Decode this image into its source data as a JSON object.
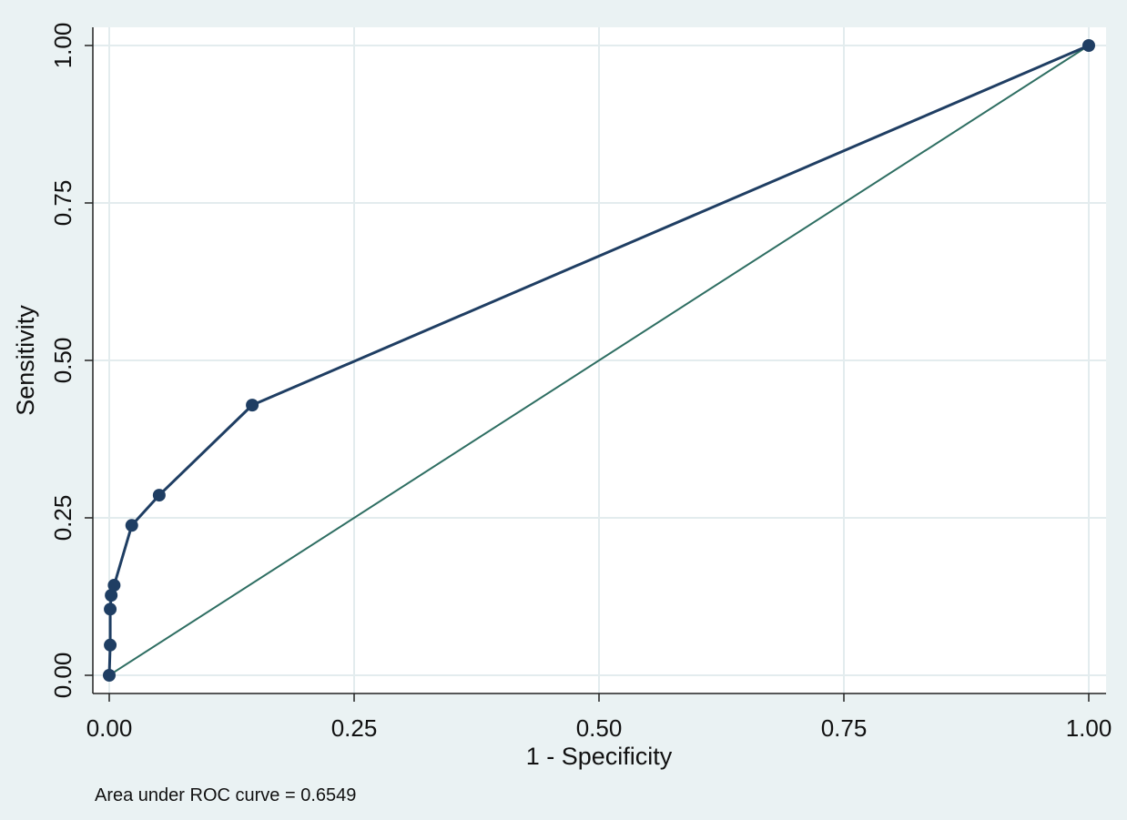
{
  "chart_data": {
    "type": "line",
    "title": "",
    "xlabel": "1 - Specificity",
    "ylabel": "Sensitivity",
    "xlim": [
      0,
      1
    ],
    "ylim": [
      0,
      1
    ],
    "x_ticks": [
      "0.00",
      "0.25",
      "0.50",
      "0.75",
      "1.00"
    ],
    "y_ticks": [
      "0.00",
      "0.25",
      "0.50",
      "0.75",
      "1.00"
    ],
    "grid": true,
    "note": "Area under ROC curve = 0.6549",
    "series": [
      {
        "color": "#1f3e63",
        "markers": true,
        "points": [
          {
            "x": 0.0,
            "y": 0.0
          },
          {
            "x": 0.001,
            "y": 0.048
          },
          {
            "x": 0.001,
            "y": 0.105
          },
          {
            "x": 0.002,
            "y": 0.127
          },
          {
            "x": 0.005,
            "y": 0.143
          },
          {
            "x": 0.023,
            "y": 0.238
          },
          {
            "x": 0.051,
            "y": 0.286
          },
          {
            "x": 0.146,
            "y": 0.429
          },
          {
            "x": 1.0,
            "y": 1.0
          }
        ]
      },
      {
        "color": "#2e6e62",
        "markers": false,
        "points": [
          {
            "x": 0.0,
            "y": 0.0
          },
          {
            "x": 1.0,
            "y": 1.0
          }
        ]
      }
    ]
  }
}
